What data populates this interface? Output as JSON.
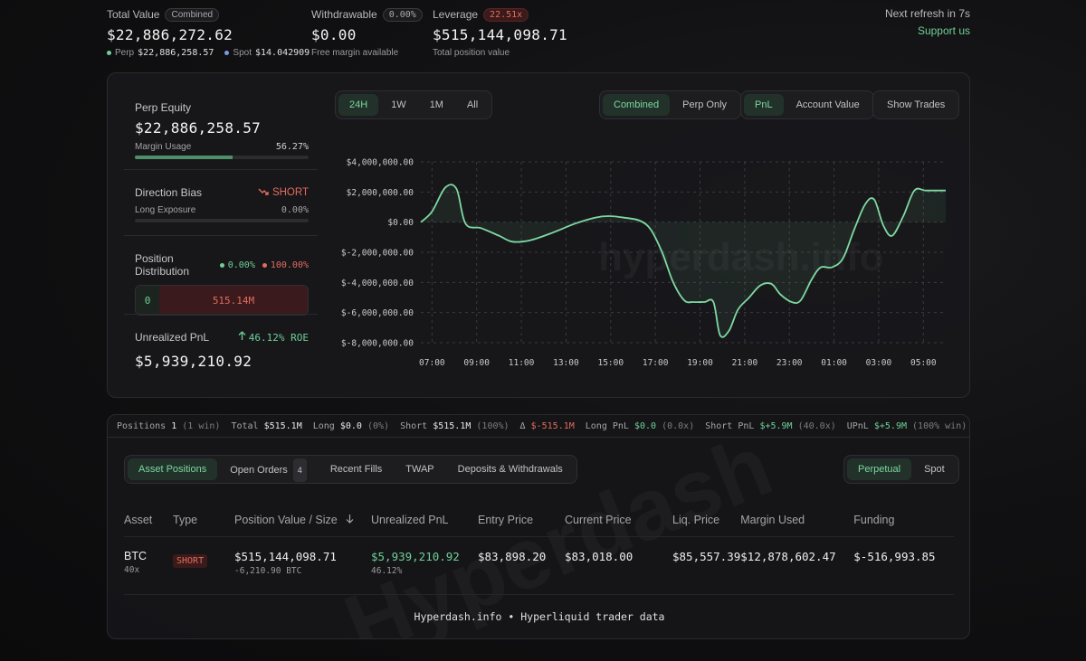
{
  "header": {
    "total_value": {
      "label": "Total Value",
      "badge": "Combined",
      "value": "$22,886,272.62",
      "perp_label": "Perp",
      "perp_value": "$22,886,258.57",
      "spot_label": "Spot",
      "spot_value": "$14.042909"
    },
    "withdrawable": {
      "label": "Withdrawable",
      "badge": "0.00%",
      "value": "$0.00",
      "sub": "Free margin available"
    },
    "leverage": {
      "label": "Leverage",
      "badge": "22.51x",
      "value": "$515,144,098.71",
      "sub": "Total position value"
    },
    "refresh": "Next refresh in 7s",
    "support": "Support us"
  },
  "account": {
    "perp_equity_label": "Perp Equity",
    "perp_equity": "$22,886,258.57",
    "margin_usage_label": "Margin Usage",
    "margin_usage": "56.27%",
    "margin_usage_fraction": 0.5627,
    "direction_bias_label": "Direction Bias",
    "direction_bias": "SHORT",
    "long_exposure_label": "Long Exposure",
    "long_exposure": "0.00%",
    "long_exposure_fraction": 0.0,
    "position_distribution_label": "Position Distribution",
    "dist_long_pct": "0.00%",
    "dist_short_pct": "100.00%",
    "dist_long_value": "0",
    "dist_short_value": "515.14M",
    "unrealized_pnl_label": "Unrealized PnL",
    "roe": "46.12% ROE",
    "unrealized_pnl": "$5,939,210.92"
  },
  "chart_controls": {
    "ranges": [
      "24H",
      "1W",
      "1M",
      "All"
    ],
    "active_range": "24H",
    "modes": [
      "Combined",
      "Perp Only"
    ],
    "active_mode": "Combined",
    "metrics": [
      "PnL",
      "Account Value"
    ],
    "active_metric": "PnL",
    "show_trades": "Show Trades"
  },
  "chart_data": {
    "type": "area",
    "ylim": [
      -8000000,
      4000000
    ],
    "y_ticks": [
      4000000,
      2000000,
      0,
      -2000000,
      -4000000,
      -6000000,
      -8000000
    ],
    "y_tick_labels": [
      "$4,000,000.00",
      "$2,000,000.00",
      "$0.00",
      "$-2,000,000.00",
      "$-4,000,000.00",
      "$-6,000,000.00",
      "$-8,000,000.00"
    ],
    "x_range": [
      6.5,
      30.0
    ],
    "x_ticks": [
      7,
      9,
      11,
      13,
      15,
      17,
      19,
      21,
      23,
      25,
      27,
      29
    ],
    "x_tick_labels": [
      "07:00",
      "09:00",
      "11:00",
      "13:00",
      "15:00",
      "17:00",
      "19:00",
      "21:00",
      "23:00",
      "01:00",
      "03:00",
      "05:00"
    ],
    "x": [
      6.5,
      7.0,
      7.6,
      8.1,
      8.5,
      9.2,
      10.0,
      10.6,
      11.4,
      12.4,
      13.4,
      14.3,
      14.9,
      15.6,
      16.3,
      16.8,
      17.3,
      17.8,
      18.3,
      18.7,
      19.2,
      19.6,
      19.9,
      20.3,
      20.7,
      21.2,
      21.7,
      22.2,
      22.6,
      23.1,
      23.5,
      24.0,
      24.4,
      24.9,
      25.4,
      25.9,
      26.4,
      26.8,
      27.2,
      27.6,
      28.1,
      28.6,
      29.1,
      29.8,
      30.0
    ],
    "y": [
      0,
      700000,
      2300000,
      2200000,
      -100000,
      -400000,
      -900000,
      -1300000,
      -1200000,
      -700000,
      -100000,
      300000,
      400000,
      300000,
      100000,
      -500000,
      -2000000,
      -4000000,
      -5200000,
      -5300000,
      -5300000,
      -5300000,
      -7500000,
      -7200000,
      -5800000,
      -5000000,
      -4200000,
      -4100000,
      -4800000,
      -5300000,
      -5200000,
      -3800000,
      -3000000,
      -3000000,
      -2400000,
      -500000,
      1200000,
      1500000,
      -200000,
      -900000,
      400000,
      2100000,
      2100000,
      2100000,
      2100000
    ]
  },
  "summary": {
    "positions_label": "Positions",
    "positions_count": "1",
    "positions_win": "(1 win)",
    "total_label": "Total",
    "total_value": "$515.1M",
    "long_label": "Long",
    "long_value": "$0.0",
    "long_pct": "(0%)",
    "short_label": "Short",
    "short_value": "$515.1M",
    "short_pct": "(100%)",
    "delta_symbol": "Δ",
    "delta_value": "$-515.1M",
    "long_pnl_label": "Long PnL",
    "long_pnl_value": "$0.0",
    "long_pnl_x": "(0.0x)",
    "short_pnl_label": "Short PnL",
    "short_pnl_value": "$+5.9M",
    "short_pnl_x": "(40.0x)",
    "upnl_label": "UPnL",
    "upnl_value": "$+5.9M",
    "upnl_win": "(100% win)"
  },
  "tabs": {
    "items": [
      "Asset Positions",
      "Open Orders",
      "Recent Fills",
      "TWAP",
      "Deposits & Withdrawals"
    ],
    "open_orders_count": "4",
    "market": [
      "Perpetual",
      "Spot"
    ]
  },
  "table": {
    "headers": [
      "Asset",
      "Type",
      "Position Value / Size",
      "Unrealized PnL",
      "Entry Price",
      "Current Price",
      "Liq. Price",
      "Margin Used",
      "Funding"
    ],
    "rows": [
      {
        "asset": "BTC",
        "leverage": "40x",
        "type": "SHORT",
        "position_value": "$515,144,098.71",
        "size": "-6,210.90 BTC",
        "upnl": "$5,939,210.92",
        "upnl_pct": "46.12%",
        "entry": "$83,898.20",
        "current": "$83,018.00",
        "liq": "$85,557.39",
        "margin": "$12,878,602.47",
        "funding": "$-516,993.85"
      }
    ]
  },
  "footer": "Hyperdash.info • Hyperliquid trader data",
  "watermarks": {
    "chart": "hyperdash.info",
    "table": "Hyperdash"
  },
  "colors": {
    "accent": "#6fcf97",
    "negative": "#e46b5d",
    "background": "#111113"
  }
}
